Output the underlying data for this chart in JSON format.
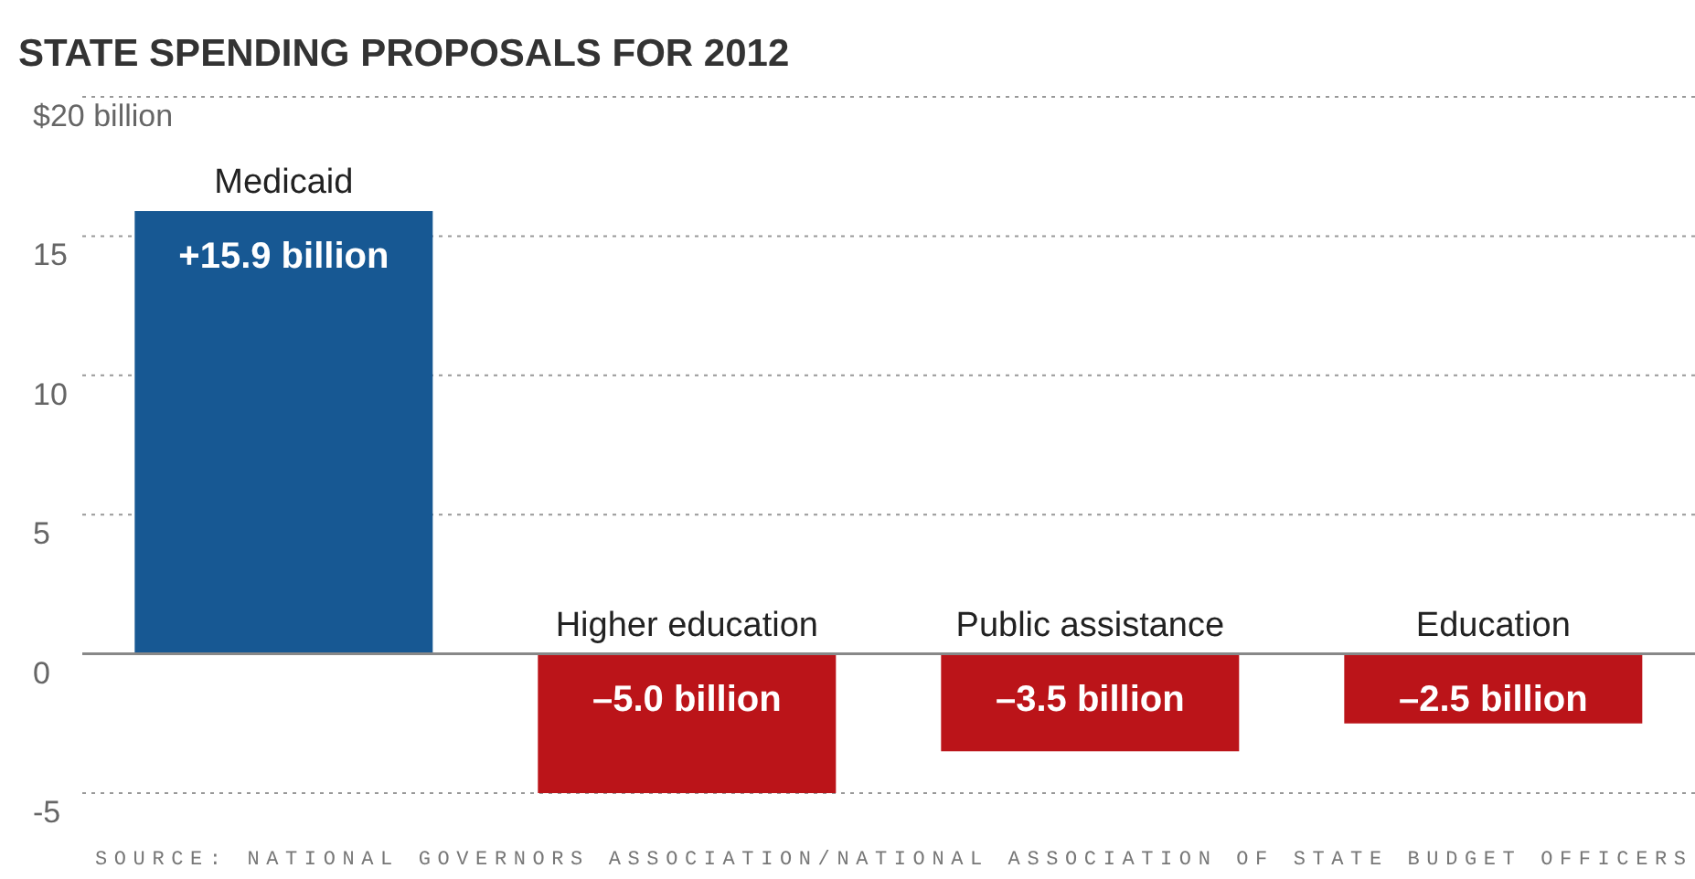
{
  "chart_data": {
    "type": "bar",
    "title": "STATE SPENDING PROPOSALS FOR 2012",
    "categories": [
      "Medicaid",
      "Higher education",
      "Public assistance",
      "Education"
    ],
    "values": [
      15.9,
      -5.0,
      -3.5,
      -2.5
    ],
    "value_labels": [
      "+15.9 billion",
      "–5.0 billion",
      "–3.5 billion",
      "–2.5 billion"
    ],
    "colors": [
      "#175893",
      "#bb1419",
      "#bb1419",
      "#bb1419"
    ],
    "ylim": [
      -5,
      20
    ],
    "yticks": [
      -5,
      0,
      5,
      10,
      15,
      {
        "value": 20,
        "label": "$20 billion"
      }
    ],
    "grid": "y",
    "annotations": [
      "SOURCE: NATIONAL GOVERNORS ASSOCIATION/NATIONAL ASSOCIATION OF STATE BUDGET OFFICERS"
    ]
  }
}
